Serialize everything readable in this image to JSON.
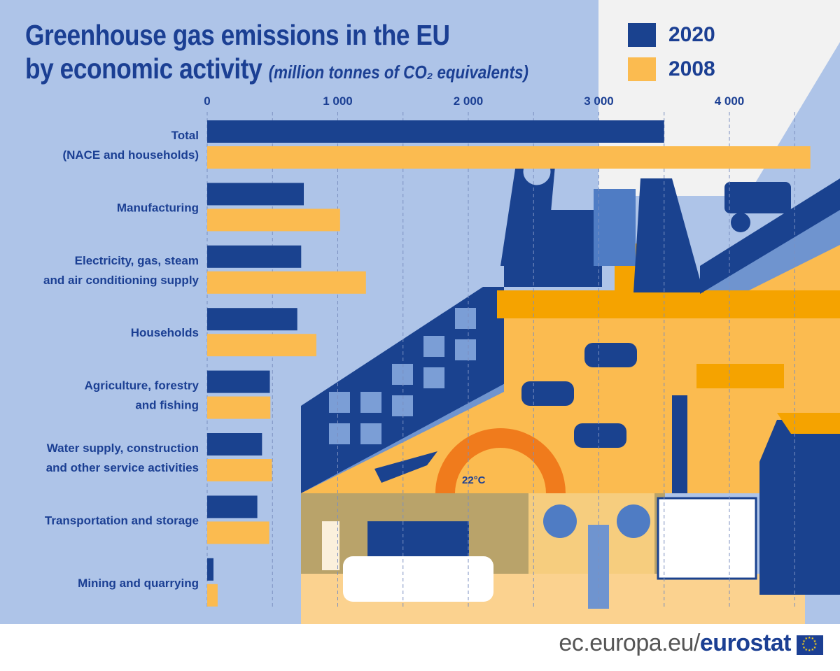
{
  "chart_data": {
    "type": "bar",
    "orientation": "horizontal",
    "title": "Greenhouse gas emissions in the EU by economic activity",
    "title_line1": "Greenhouse gas emissions in the EU",
    "title_line2": "by economic activity",
    "unit": "(million tonnes of CO₂ equivalents)",
    "categories": [
      [
        "Total",
        "(NACE and households)"
      ],
      [
        "Manufacturing"
      ],
      [
        "Electricity, gas, steam",
        "and air conditioning supply"
      ],
      [
        "Households"
      ],
      [
        "Agriculture, forestry",
        "and fishing"
      ],
      [
        "Water supply, construction",
        "and other service activities"
      ],
      [
        "Transportation and storage"
      ],
      [
        "Mining and quarrying"
      ]
    ],
    "series": [
      {
        "name": "2020",
        "color": "#1a428f",
        "values": [
          3500,
          740,
          720,
          690,
          480,
          420,
          384,
          48
        ]
      },
      {
        "name": "2008",
        "color": "#fbbb50",
        "values": [
          4620,
          1018,
          1216,
          836,
          484,
          496,
          475,
          80
        ]
      }
    ],
    "xlim": [
      0,
      4750
    ],
    "ticks": [
      "0",
      "1 000",
      "2 000",
      "3 000",
      "4 000"
    ],
    "tick_values": [
      0,
      1000,
      2000,
      3000,
      4000
    ],
    "grid": "dashed vertical every 500",
    "legend_placement": "top-right"
  },
  "illustration": {
    "thermostat_label": "22°C"
  },
  "footer": {
    "domain": "ec.europa.eu/",
    "brand": "eurostat"
  },
  "colors": {
    "background": "#aec4e8",
    "title": "#1b3f93",
    "dark_blue": "#1a428f",
    "yellow": "#fbbb50"
  }
}
